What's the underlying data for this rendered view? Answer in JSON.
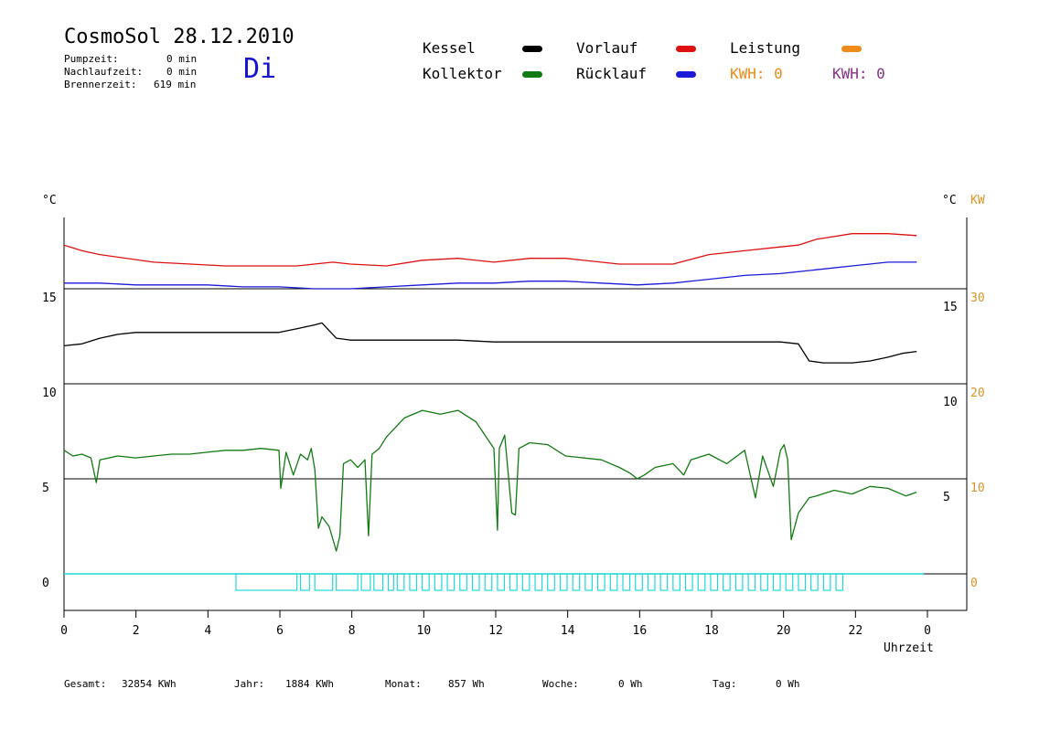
{
  "header": {
    "title": "CosmoSol 28.12.2010",
    "day": "Di",
    "stats": [
      {
        "label": "Pumpzeit:",
        "value": "0 min"
      },
      {
        "label": "Nachlaufzeit:",
        "value": "0 min"
      },
      {
        "label": "Brennerzeit:",
        "value": "619 min"
      }
    ]
  },
  "legend": {
    "kessel": "Kessel",
    "kollektor": "Kollektor",
    "vorlauf": "Vorlauf",
    "ruecklauf": "Rücklauf",
    "leistung": "Leistung",
    "kwh1": "KWH: 0",
    "kwh2": "KWH: 0"
  },
  "colors": {
    "kessel": "#000000",
    "kollektor": "#127a12",
    "vorlauf": "#dd1111",
    "ruecklauf": "#1a1ad8",
    "leistung": "#f08a18",
    "kwh2": "#8a2f8a",
    "pump": "#22d8d8"
  },
  "axes": {
    "left_unit": "°C",
    "right_unit": "°C",
    "right_unit2": "KW",
    "x_label": "Uhrzeit"
  },
  "footer": {
    "gesamt_label": "Gesamt:",
    "gesamt_value": "32854 KWh",
    "jahr_label": "Jahr:",
    "jahr_value": "1884 KWh",
    "monat_label": "Monat:",
    "monat_value": "857 Wh",
    "woche_label": "Woche:",
    "woche_value": "0 Wh",
    "tag_label": "Tag:",
    "tag_value": "0 Wh"
  },
  "chart_data": {
    "type": "line",
    "x_range": [
      0,
      24
    ],
    "x_ticks": [
      "0",
      "2",
      "4",
      "6",
      "8",
      "10",
      "12",
      "14",
      "16",
      "18",
      "20",
      "22",
      "0"
    ],
    "left_ticks": [
      "15",
      "10",
      "5",
      "0"
    ],
    "right_ticks": [
      "15",
      "10",
      "5"
    ],
    "kw_ticks": [
      "30",
      "20",
      "10",
      "0"
    ],
    "series": [
      {
        "name": "Vorlauf",
        "color": "#dd1111",
        "x": [
          0,
          0.5,
          1,
          2.5,
          4.5,
          6.5,
          7.5,
          8,
          9,
          10,
          11,
          12,
          13,
          14,
          15.5,
          17,
          18,
          19,
          20,
          20.5,
          21,
          22,
          23,
          23.8
        ],
        "y": [
          17.3,
          17.0,
          16.8,
          16.4,
          16.2,
          16.2,
          16.4,
          16.3,
          16.2,
          16.5,
          16.6,
          16.4,
          16.6,
          16.6,
          16.3,
          16.3,
          16.8,
          17.0,
          17.2,
          17.3,
          17.6,
          17.9,
          17.9,
          17.8
        ]
      },
      {
        "name": "Rücklauf",
        "color": "#1a1ad8",
        "x": [
          0,
          1,
          2,
          3,
          4,
          5,
          6,
          7,
          8,
          9,
          10,
          11,
          12,
          13,
          14,
          15,
          16,
          17,
          18,
          19,
          20,
          21,
          22,
          23,
          23.8
        ],
        "y": [
          15.3,
          15.3,
          15.2,
          15.2,
          15.2,
          15.1,
          15.1,
          15.0,
          15.0,
          15.1,
          15.2,
          15.3,
          15.3,
          15.4,
          15.4,
          15.3,
          15.2,
          15.3,
          15.5,
          15.7,
          15.8,
          16.0,
          16.2,
          16.4,
          16.4
        ]
      },
      {
        "name": "Kessel",
        "color": "#000000",
        "x": [
          0,
          0.5,
          1,
          1.5,
          2,
          3,
          4,
          5,
          6,
          6.5,
          7,
          7.2,
          7.6,
          8,
          9,
          10,
          11,
          12,
          13,
          14,
          15,
          16,
          17,
          18,
          19,
          20,
          20.5,
          20.8,
          21.2,
          22,
          22.5,
          23,
          23.4,
          23.8
        ],
        "y": [
          12.0,
          12.1,
          12.4,
          12.6,
          12.7,
          12.7,
          12.7,
          12.7,
          12.7,
          12.9,
          13.1,
          13.2,
          12.4,
          12.3,
          12.3,
          12.3,
          12.3,
          12.2,
          12.2,
          12.2,
          12.2,
          12.2,
          12.2,
          12.2,
          12.2,
          12.2,
          12.1,
          11.2,
          11.1,
          11.1,
          11.2,
          11.4,
          11.6,
          11.7
        ]
      },
      {
        "name": "Kollektor",
        "color": "#127a12",
        "x": [
          0,
          0.25,
          0.5,
          0.75,
          0.9,
          1,
          1.5,
          2,
          2.5,
          3,
          3.5,
          4,
          4.5,
          5,
          5.5,
          6,
          6.05,
          6.2,
          6.4,
          6.6,
          6.8,
          6.9,
          7.0,
          7.1,
          7.2,
          7.4,
          7.6,
          7.7,
          7.8,
          8.0,
          8.2,
          8.4,
          8.5,
          8.6,
          8.8,
          9.0,
          9.5,
          10,
          10.5,
          11,
          11.5,
          12,
          12.1,
          12.15,
          12.3,
          12.5,
          12.6,
          12.7,
          13,
          13.5,
          14,
          15,
          15.5,
          15.8,
          16,
          16.2,
          16.5,
          17,
          17.3,
          17.5,
          18,
          18.5,
          19,
          19.3,
          19.5,
          19.8,
          20,
          20.1,
          20.2,
          20.3,
          20.5,
          20.8,
          21,
          21.5,
          22,
          22.5,
          23,
          23.5,
          23.8
        ],
        "y": [
          6.5,
          6.2,
          6.3,
          6.1,
          4.8,
          6.0,
          6.2,
          6.1,
          6.2,
          6.3,
          6.3,
          6.4,
          6.5,
          6.5,
          6.6,
          6.5,
          4.5,
          6.4,
          5.2,
          6.3,
          6.0,
          6.6,
          5.5,
          2.4,
          3.0,
          2.5,
          1.2,
          2.0,
          5.8,
          6.0,
          5.6,
          6.0,
          2.0,
          6.3,
          6.6,
          7.2,
          8.2,
          8.6,
          8.4,
          8.6,
          8.0,
          6.6,
          2.3,
          6.6,
          7.3,
          3.2,
          3.1,
          6.6,
          6.9,
          6.8,
          6.2,
          6.0,
          5.6,
          5.3,
          5.0,
          5.2,
          5.6,
          5.8,
          5.2,
          6.0,
          6.3,
          5.8,
          6.5,
          4.0,
          6.2,
          4.6,
          6.5,
          6.8,
          6.0,
          1.8,
          3.2,
          4.0,
          4.1,
          4.4,
          4.2,
          4.6,
          4.5,
          4.1,
          4.3
        ]
      }
    ],
    "pump_markers": {
      "color": "#22d8d8",
      "intervals": [
        [
          4.8,
          6.5
        ],
        [
          6.6,
          6.85
        ],
        [
          7.0,
          7.5
        ],
        [
          7.6,
          8.2
        ],
        [
          8.3,
          8.55
        ],
        [
          8.65,
          8.9
        ],
        [
          9.05,
          9.2
        ]
      ],
      "periodic_start": 9.3,
      "periodic_end": 21.8,
      "periodic_step": 0.35
    },
    "ylim": [
      -2,
      19
    ]
  }
}
